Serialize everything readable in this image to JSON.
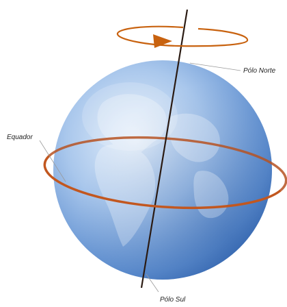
{
  "labels": {
    "north_pole": "Pólo Norte",
    "equator": "Equador",
    "south_pole": "Pólo Sul"
  },
  "colors": {
    "axis": "#2a1a12",
    "equator_ring": "#c2571f",
    "rotation_arrow": "#c8620f",
    "globe_light": "#dce9f7",
    "globe_mid": "#8fb4e2",
    "globe_dark": "#3d6fb8",
    "leader_line": "#9a9a9a",
    "label_text": "#222222"
  },
  "icons": {
    "rotation": "rotation-arrow-icon"
  }
}
